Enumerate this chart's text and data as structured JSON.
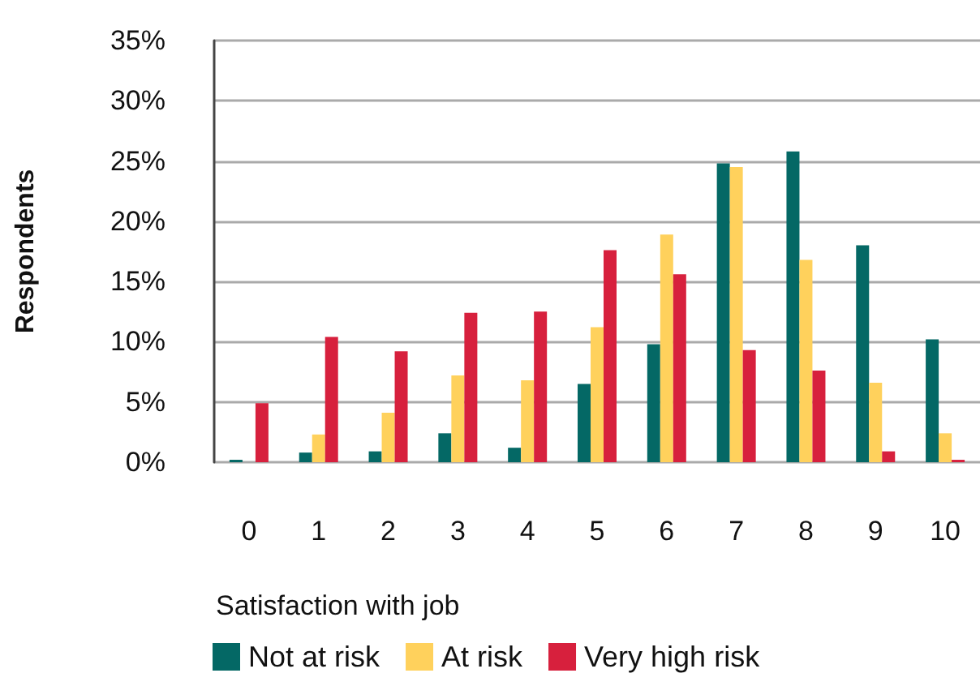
{
  "chart_data": {
    "type": "bar",
    "xlabel": "Satisfaction with job",
    "ylabel": "Respondents",
    "categories": [
      "0",
      "1",
      "2",
      "3",
      "4",
      "5",
      "6",
      "7",
      "8",
      "9",
      "10"
    ],
    "series": [
      {
        "name": "Not at risk",
        "color": "#046865",
        "values": [
          0.2,
          0.8,
          0.9,
          2.4,
          1.2,
          6.5,
          9.8,
          24.8,
          25.8,
          18.0,
          10.2
        ]
      },
      {
        "name": "At risk",
        "color": "#ffd15c",
        "values": [
          0,
          2.3,
          4.1,
          7.2,
          6.8,
          11.2,
          18.9,
          24.5,
          16.8,
          6.6,
          2.4
        ]
      },
      {
        "name": "Very high risk",
        "color": "#d7203d",
        "values": [
          4.9,
          10.4,
          9.2,
          12.4,
          12.5,
          17.6,
          15.6,
          9.3,
          7.6,
          0.9,
          0.2
        ]
      }
    ],
    "ylim": [
      0,
      35
    ],
    "yticks": [
      {
        "value": 0,
        "label": "0%"
      },
      {
        "value": 5,
        "label": "5%"
      },
      {
        "value": 10,
        "label": "10%"
      },
      {
        "value": 15,
        "label": "15%"
      },
      {
        "value": 20,
        "label": "20%"
      },
      {
        "value": 25,
        "label": "25%"
      },
      {
        "value": 30,
        "label": "30%"
      },
      {
        "value": 35,
        "label": "35%"
      }
    ],
    "grid": "y",
    "legend": "bottom left"
  }
}
